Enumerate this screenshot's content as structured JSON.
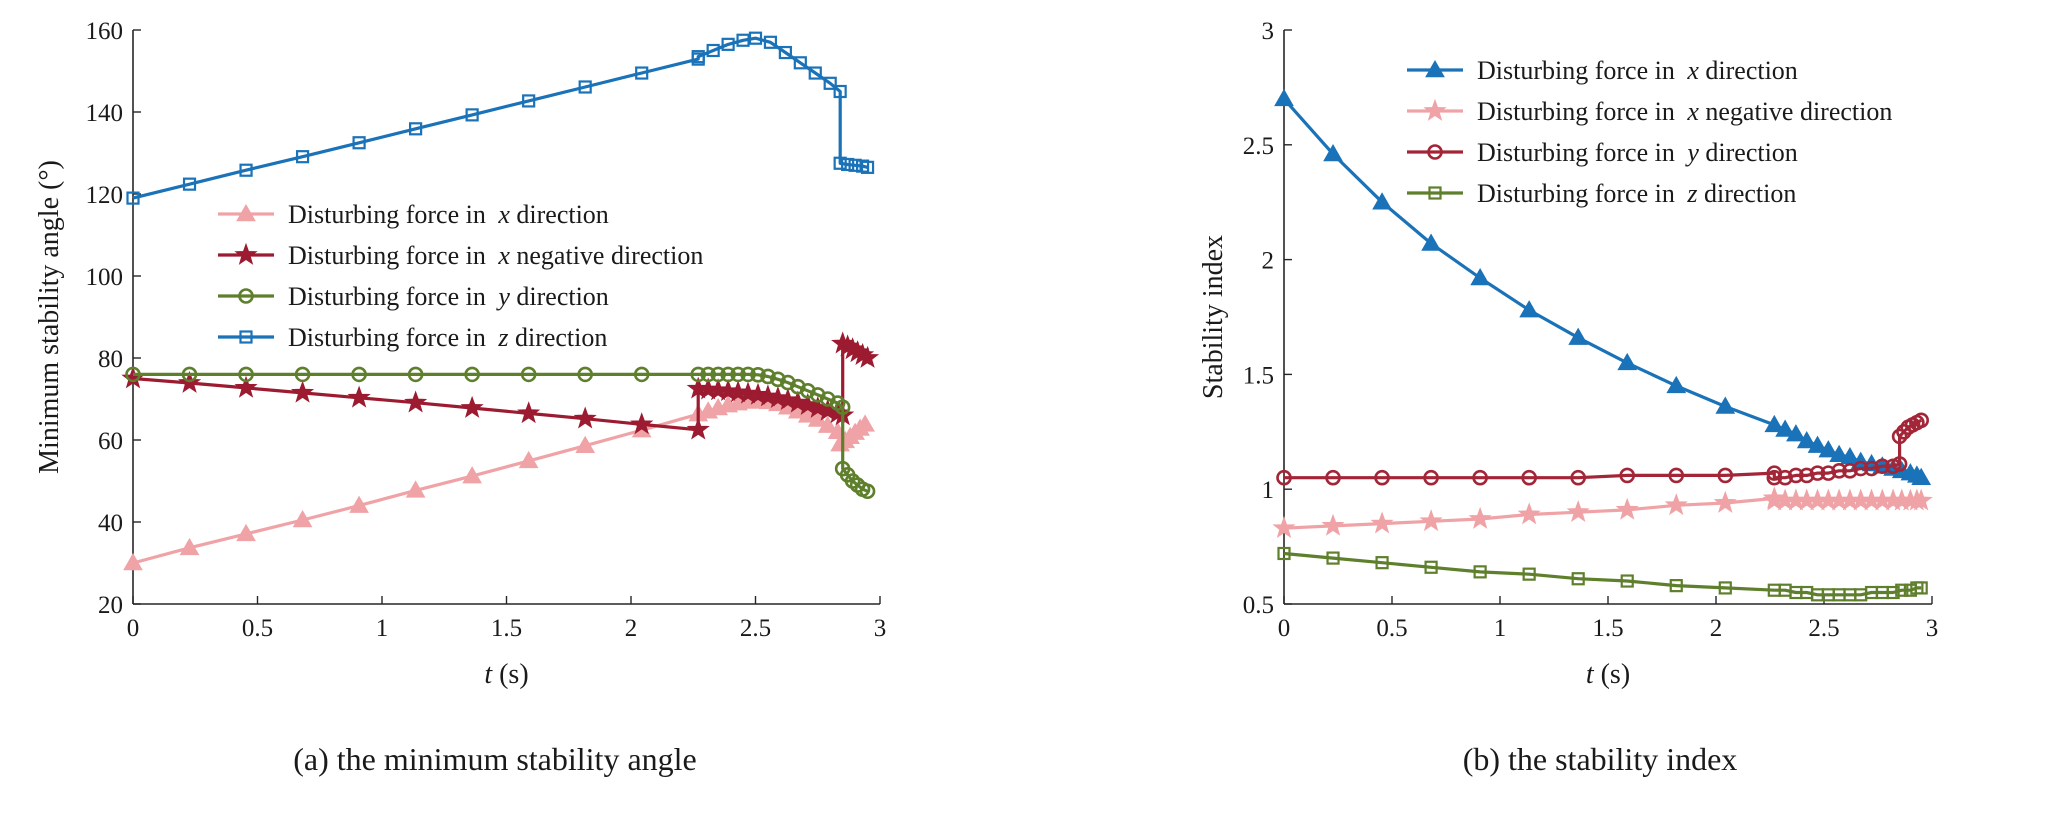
{
  "chart_data": [
    {
      "type": "line",
      "caption": "(a) the minimum stability angle",
      "xlabel_var": "t",
      "xlabel_unit": " (s)",
      "ylabel": "Minimum stability angle (°)",
      "xlim": [
        0,
        3
      ],
      "ylim": [
        20,
        160
      ],
      "xticks": [
        0,
        0.5,
        1,
        1.5,
        2,
        2.5,
        3
      ],
      "xtick_labels": [
        "0",
        "0.5",
        "1",
        "1.5",
        "2",
        "2.5",
        "3"
      ],
      "yticks": [
        20,
        40,
        60,
        80,
        100,
        120,
        140,
        160
      ],
      "ytick_labels": [
        "20",
        "40",
        "60",
        "80",
        "100",
        "120",
        "140",
        "160"
      ],
      "legend_position": "center-left",
      "series": [
        {
          "name": "Disturbing force in x direction",
          "legend_prefix": "Disturbing force in ",
          "legend_var": "x",
          "legend_suffix": " direction",
          "color": "#f0a3a6",
          "marker": "triangle",
          "x": [
            0,
            0.227,
            0.454,
            0.681,
            0.908,
            1.135,
            1.362,
            1.589,
            1.816,
            2.043,
            2.27,
            2.31,
            2.35,
            2.39,
            2.43,
            2.47,
            2.51,
            2.55,
            2.59,
            2.63,
            2.67,
            2.71,
            2.75,
            2.79,
            2.83,
            2.84,
            2.86,
            2.88,
            2.9,
            2.92,
            2.94
          ],
          "y": [
            30,
            33.7,
            37.1,
            40.5,
            44,
            47.7,
            51.2,
            54.9,
            58.6,
            62.4,
            66.3,
            67,
            67.8,
            68.5,
            69,
            69.4,
            69.5,
            69.3,
            68.8,
            68,
            67,
            66,
            65,
            63.5,
            62,
            59,
            59.8,
            60.8,
            61.8,
            62.8,
            63.8
          ]
        },
        {
          "name": "Disturbing force in x negative direction",
          "legend_prefix": "Disturbing force in ",
          "legend_var": "x",
          "legend_suffix": " negative direction",
          "color": "#9c1b30",
          "marker": "star",
          "x": [
            0,
            0.227,
            0.454,
            0.681,
            0.908,
            1.135,
            1.362,
            1.589,
            1.816,
            2.043,
            2.27,
            2.27,
            2.31,
            2.35,
            2.39,
            2.43,
            2.47,
            2.51,
            2.55,
            2.59,
            2.63,
            2.67,
            2.71,
            2.75,
            2.79,
            2.83,
            2.85,
            2.85,
            2.87,
            2.89,
            2.91,
            2.93,
            2.95
          ],
          "y": [
            75,
            73.9,
            72.7,
            71.5,
            70.3,
            69.1,
            67.8,
            66.5,
            65.2,
            63.8,
            62.5,
            72.5,
            72.3,
            72.1,
            71.9,
            71.6,
            71.3,
            71,
            70.6,
            70.2,
            69.7,
            69.1,
            68.5,
            67.8,
            67.1,
            66.5,
            66,
            83.5,
            82.8,
            82.1,
            81.4,
            80.7,
            80
          ]
        },
        {
          "name": "Disturbing force in y direction",
          "legend_prefix": "Disturbing force in ",
          "legend_var": "y",
          "legend_suffix": " direction",
          "color": "#5e7f2c",
          "marker": "circle",
          "x": [
            0,
            0.227,
            0.454,
            0.681,
            0.908,
            1.135,
            1.362,
            1.589,
            1.816,
            2.043,
            2.27,
            2.31,
            2.35,
            2.39,
            2.43,
            2.47,
            2.51,
            2.55,
            2.59,
            2.63,
            2.67,
            2.71,
            2.75,
            2.79,
            2.83,
            2.85,
            2.85,
            2.87,
            2.89,
            2.91,
            2.93,
            2.95
          ],
          "y": [
            76,
            76,
            76,
            76,
            76,
            76,
            76,
            76,
            76,
            76,
            76,
            76,
            76,
            76,
            76,
            76,
            75.9,
            75.5,
            74.8,
            74,
            73,
            72,
            71,
            70,
            69,
            68,
            53,
            51.5,
            50,
            49,
            48,
            47.5
          ]
        },
        {
          "name": "Disturbing force in z direction",
          "legend_prefix": "Disturbing force in ",
          "legend_var": "z",
          "legend_suffix": " direction",
          "color": "#1a72b8",
          "marker": "square",
          "x": [
            0,
            0.227,
            0.454,
            0.681,
            0.908,
            1.135,
            1.362,
            1.589,
            1.816,
            2.043,
            2.27,
            2.27,
            2.33,
            2.39,
            2.45,
            2.5,
            2.56,
            2.62,
            2.68,
            2.74,
            2.8,
            2.84,
            2.84,
            2.87,
            2.9,
            2.93,
            2.95
          ],
          "y": [
            119,
            122.4,
            125.8,
            129.1,
            132.5,
            135.9,
            139.3,
            142.7,
            146.1,
            149.5,
            152.9,
            153.5,
            155,
            156.5,
            157.5,
            158,
            157,
            154.5,
            152,
            149.5,
            147,
            145,
            127.5,
            127.2,
            127,
            126.8,
            126.5
          ]
        }
      ]
    },
    {
      "type": "line",
      "caption": "(b) the stability index",
      "xlabel_var": "t",
      "xlabel_unit": " (s)",
      "ylabel": "Stability index",
      "xlim": [
        0,
        3
      ],
      "ylim": [
        0.5,
        3
      ],
      "xticks": [
        0,
        0.5,
        1,
        1.5,
        2,
        2.5,
        3
      ],
      "xtick_labels": [
        "0",
        "0.5",
        "1",
        "1.5",
        "2",
        "2.5",
        "3"
      ],
      "yticks": [
        0.5,
        1,
        1.5,
        2,
        2.5,
        3
      ],
      "ytick_labels": [
        "0.5",
        "1",
        "1.5",
        "2",
        "2.5",
        "3"
      ],
      "legend_position": "top-right",
      "series": [
        {
          "name": "Disturbing force in x direction",
          "legend_prefix": "Disturbing force in ",
          "legend_var": "x",
          "legend_suffix": " direction",
          "color": "#1a72b8",
          "marker": "triangle",
          "x": [
            0,
            0.227,
            0.454,
            0.681,
            0.908,
            1.135,
            1.362,
            1.589,
            1.816,
            2.043,
            2.27,
            2.32,
            2.37,
            2.42,
            2.47,
            2.52,
            2.57,
            2.62,
            2.67,
            2.72,
            2.77,
            2.82,
            2.86,
            2.9,
            2.93,
            2.95
          ],
          "y": [
            2.7,
            2.46,
            2.25,
            2.07,
            1.92,
            1.78,
            1.66,
            1.55,
            1.45,
            1.36,
            1.28,
            1.26,
            1.24,
            1.21,
            1.19,
            1.17,
            1.15,
            1.14,
            1.12,
            1.11,
            1.1,
            1.09,
            1.08,
            1.07,
            1.06,
            1.05
          ]
        },
        {
          "name": "Disturbing force in x negative direction",
          "legend_prefix": "Disturbing force in ",
          "legend_var": "x",
          "legend_suffix": " negative direction",
          "color": "#f0a3a6",
          "marker": "star",
          "x": [
            0,
            0.227,
            0.454,
            0.681,
            0.908,
            1.135,
            1.362,
            1.589,
            1.816,
            2.043,
            2.27,
            2.27,
            2.32,
            2.37,
            2.42,
            2.47,
            2.52,
            2.57,
            2.62,
            2.67,
            2.72,
            2.77,
            2.82,
            2.86,
            2.9,
            2.93,
            2.95
          ],
          "y": [
            0.83,
            0.84,
            0.85,
            0.86,
            0.87,
            0.89,
            0.9,
            0.91,
            0.93,
            0.94,
            0.96,
            0.95,
            0.95,
            0.95,
            0.95,
            0.95,
            0.95,
            0.95,
            0.95,
            0.95,
            0.95,
            0.95,
            0.95,
            0.95,
            0.95,
            0.95,
            0.95
          ]
        },
        {
          "name": "Disturbing force in y direction",
          "legend_prefix": "Disturbing force in ",
          "legend_var": "y",
          "legend_suffix": " direction",
          "color": "#a32638",
          "marker": "circle",
          "x": [
            0,
            0.227,
            0.454,
            0.681,
            0.908,
            1.135,
            1.362,
            1.589,
            1.816,
            2.043,
            2.27,
            2.27,
            2.32,
            2.37,
            2.42,
            2.47,
            2.52,
            2.57,
            2.62,
            2.67,
            2.72,
            2.77,
            2.82,
            2.85,
            2.85,
            2.87,
            2.89,
            2.91,
            2.93,
            2.95
          ],
          "y": [
            1.05,
            1.05,
            1.05,
            1.05,
            1.05,
            1.05,
            1.05,
            1.06,
            1.06,
            1.06,
            1.07,
            1.05,
            1.05,
            1.06,
            1.06,
            1.07,
            1.07,
            1.08,
            1.08,
            1.09,
            1.09,
            1.1,
            1.1,
            1.11,
            1.23,
            1.25,
            1.27,
            1.28,
            1.29,
            1.3
          ]
        },
        {
          "name": "Disturbing force in z direction",
          "legend_prefix": "Disturbing force in ",
          "legend_var": "z",
          "legend_suffix": " direction",
          "color": "#5e7f2c",
          "marker": "square",
          "x": [
            0,
            0.227,
            0.454,
            0.681,
            0.908,
            1.135,
            1.362,
            1.589,
            1.816,
            2.043,
            2.27,
            2.32,
            2.37,
            2.42,
            2.47,
            2.52,
            2.57,
            2.62,
            2.67,
            2.72,
            2.77,
            2.82,
            2.86,
            2.9,
            2.93,
            2.95
          ],
          "y": [
            0.72,
            0.7,
            0.68,
            0.66,
            0.64,
            0.63,
            0.61,
            0.6,
            0.58,
            0.57,
            0.56,
            0.56,
            0.55,
            0.55,
            0.54,
            0.54,
            0.54,
            0.54,
            0.54,
            0.55,
            0.55,
            0.55,
            0.56,
            0.56,
            0.57,
            0.57
          ]
        }
      ]
    }
  ]
}
